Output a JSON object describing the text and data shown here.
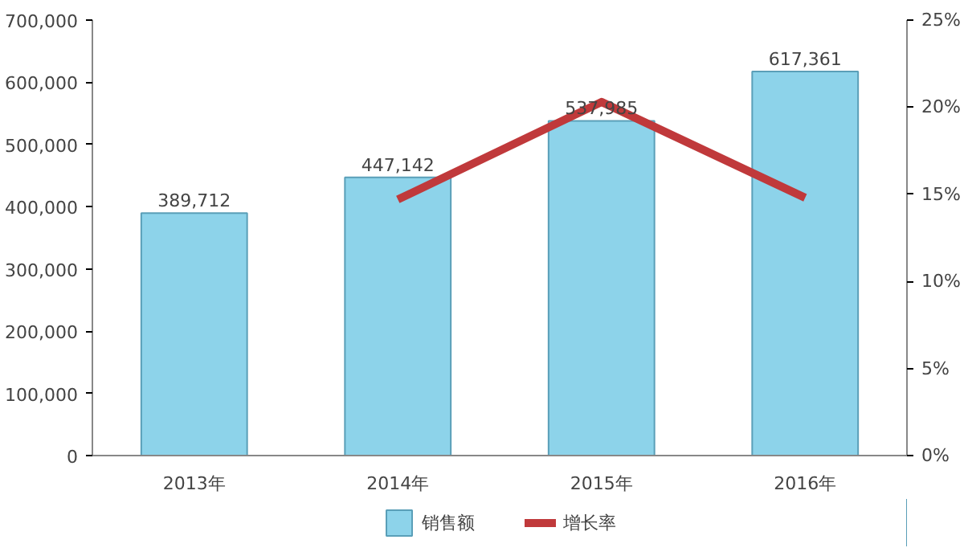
{
  "chart_data": {
    "type": "bar",
    "categories": [
      "2013年",
      "2014年",
      "2015年",
      "2016年"
    ],
    "series": [
      {
        "name": "销售额",
        "color": "#8dd3ea",
        "values": [
          389712,
          447142,
          537985,
          617361
        ],
        "value_labels": [
          "389,712",
          "447,142",
          "537,985",
          "617,361"
        ]
      },
      {
        "name": "增长率",
        "type": "line",
        "axis": "y2",
        "color": "#c0393b",
        "values": [
          null,
          14.7,
          20.3,
          14.8
        ]
      }
    ],
    "ylim": [
      0,
      700000
    ],
    "yticks": [
      0,
      {
        "value": 100000,
        "label": "100,000"
      },
      {
        "value": 200000,
        "label": "200,000"
      },
      {
        "value": 300000,
        "label": "300,000"
      },
      {
        "value": 400000,
        "label": "400,000"
      },
      {
        "value": 500000,
        "label": "500,000"
      },
      {
        "value": 600000,
        "label": "600,000"
      },
      {
        "value": 700000,
        "label": "700,000"
      }
    ],
    "y2lim": [
      0,
      25
    ],
    "y2ticks": [
      {
        "value": 0,
        "label": "0%"
      },
      {
        "value": 5,
        "label": "5%"
      },
      {
        "value": 10,
        "label": "10%"
      },
      {
        "value": 15,
        "label": "15%"
      },
      {
        "value": 20,
        "label": "20%"
      },
      {
        "value": 25,
        "label": "25%"
      }
    ],
    "grid": false,
    "legend": "bottom",
    "marker": "none",
    "line_style": "solid"
  }
}
